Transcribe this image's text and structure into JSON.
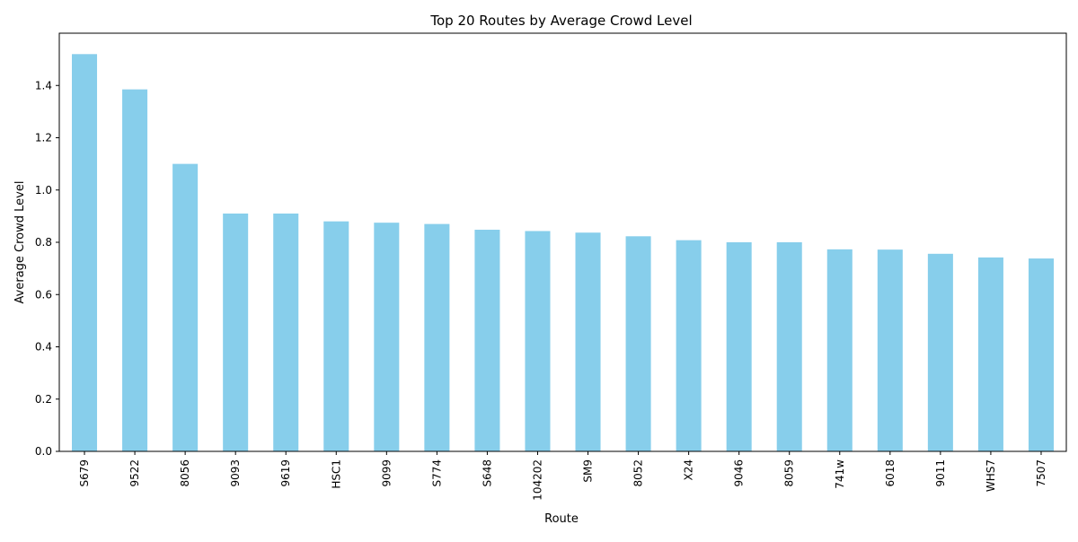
{
  "chart_data": {
    "type": "bar",
    "title": "Top 20 Routes by Average Crowd Level",
    "xlabel": "Route",
    "ylabel": "Average Crowd Level",
    "categories": [
      "S679",
      "9522",
      "8056",
      "9093",
      "9619",
      "HSC1",
      "9099",
      "S774",
      "S648",
      "104202",
      "SM9",
      "8052",
      "X24",
      "9046",
      "8059",
      "741w",
      "6018",
      "9011",
      "WHS7",
      "7507"
    ],
    "values": [
      1.52,
      1.385,
      1.1,
      0.91,
      0.91,
      0.88,
      0.875,
      0.87,
      0.848,
      0.843,
      0.837,
      0.823,
      0.808,
      0.8,
      0.8,
      0.773,
      0.772,
      0.756,
      0.742,
      0.738
    ],
    "ylim": [
      0,
      1.6
    ],
    "yticks": [
      "0.0",
      "0.2",
      "0.4",
      "0.6",
      "0.8",
      "1.0",
      "1.2",
      "1.4"
    ],
    "bar_color": "#87ceeb",
    "grid": false,
    "legend": "none"
  }
}
